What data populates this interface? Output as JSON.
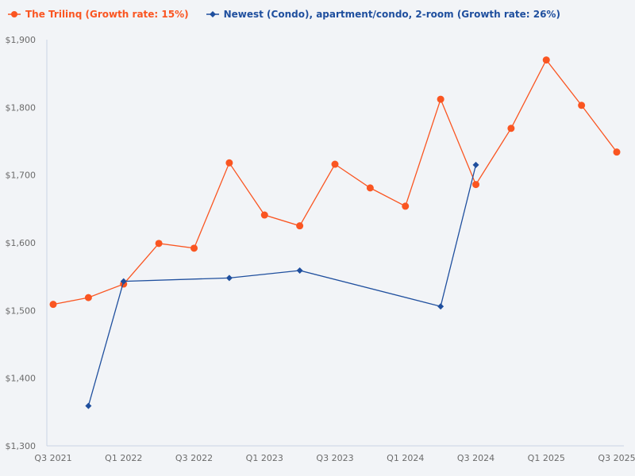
{
  "colors": {
    "background": "#f2f4f7",
    "axis": "#c9d3e6",
    "series1": "#fa5521",
    "series2": "#1f4f9e",
    "tick_text": "#6b6b6b"
  },
  "legend": [
    {
      "label": "The Trilinq (Growth rate: 15%)",
      "color": "#fa5521",
      "marker": "circle"
    },
    {
      "label": "Newest (Condo), apartment/condo, 2-room (Growth rate: 26%)",
      "color": "#1f4f9e",
      "marker": "diamond"
    }
  ],
  "chart_data": {
    "type": "line",
    "title": "",
    "xlabel": "",
    "ylabel": "",
    "ylim": [
      1300,
      1900
    ],
    "grid": false,
    "legend_position": "top-left",
    "y_ticks": [
      1300,
      1400,
      1500,
      1600,
      1700,
      1800,
      1900
    ],
    "y_tick_labels": [
      "$1,300",
      "$1,400",
      "$1,500",
      "$1,600",
      "$1,700",
      "$1,800",
      "$1,900"
    ],
    "categories": [
      "Q3 2021",
      "Q4 2021",
      "Q1 2022",
      "Q2 2022",
      "Q3 2022",
      "Q4 2022",
      "Q1 2023",
      "Q2 2023",
      "Q3 2023",
      "Q4 2023",
      "Q1 2024",
      "Q2 2024",
      "Q3 2024",
      "Q4 2024",
      "Q1 2025",
      "Q2 2025",
      "Q3 2025"
    ],
    "x_tick_labels": [
      "Q3 2021",
      "Q1 2022",
      "Q3 2022",
      "Q1 2023",
      "Q3 2023",
      "Q1 2024",
      "Q3 2024",
      "Q1 2025",
      "Q3 2025"
    ],
    "series": [
      {
        "name": "The Trilinq (Growth rate: 15%)",
        "color": "#fa5521",
        "marker": "circle",
        "values": [
          1509,
          1519,
          1539,
          1599,
          1592,
          1718,
          1641,
          1625,
          1716,
          1681,
          1654,
          1812,
          1686,
          1769,
          1870,
          1803,
          1734
        ]
      },
      {
        "name": "Newest (Condo), apartment/condo, 2-room (Growth rate: 26%)",
        "color": "#1f4f9e",
        "marker": "diamond",
        "values": [
          null,
          1359,
          1543,
          null,
          null,
          1548,
          null,
          1559,
          null,
          null,
          null,
          1506,
          1715,
          null,
          null,
          null,
          null
        ]
      }
    ]
  }
}
